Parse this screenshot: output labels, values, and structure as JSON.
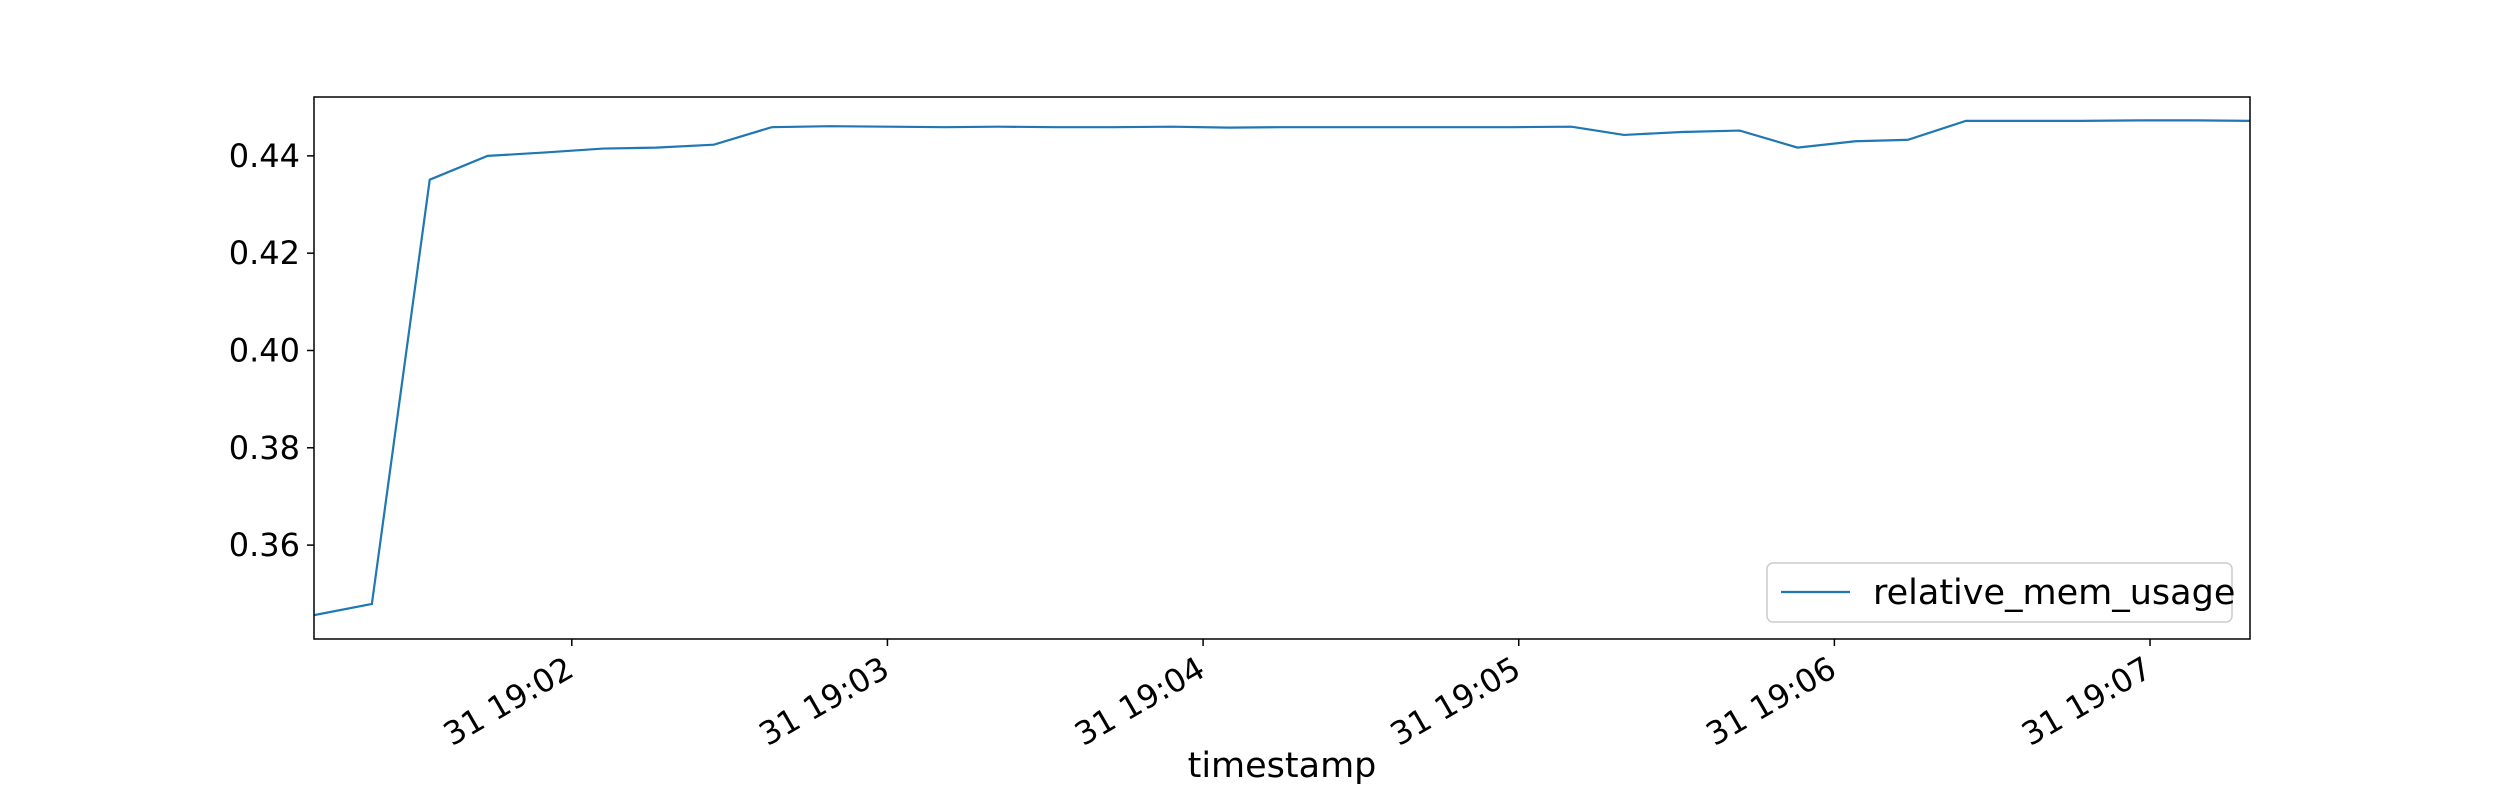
{
  "chart_data": {
    "type": "line",
    "x_label": "timestamp",
    "x": [
      "31 19:01:11",
      "31 19:01:22",
      "31 19:01:33",
      "31 19:01:44",
      "31 19:01:55",
      "31 19:02:06",
      "31 19:02:16",
      "31 19:02:27",
      "31 19:02:38",
      "31 19:02:49",
      "31 19:03:00",
      "31 19:03:11",
      "31 19:03:21",
      "31 19:03:32",
      "31 19:03:43",
      "31 19:03:54",
      "31 19:04:05",
      "31 19:04:15",
      "31 19:04:26",
      "31 19:04:37",
      "31 19:04:48",
      "31 19:04:59",
      "31 19:05:10",
      "31 19:05:20",
      "31 19:05:31",
      "31 19:05:42",
      "31 19:05:53",
      "31 19:06:04",
      "31 19:06:14",
      "31 19:06:25",
      "31 19:06:36",
      "31 19:06:47",
      "31 19:06:58",
      "31 19:07:09",
      "31 19:07:19"
    ],
    "series": [
      {
        "name": "relative_mem_usage",
        "color": "#1f77b4",
        "values": [
          0.3456,
          0.3479,
          0.4351,
          0.44,
          0.4407,
          0.4415,
          0.4417,
          0.4423,
          0.4459,
          0.4461,
          0.446,
          0.4459,
          0.446,
          0.4459,
          0.4459,
          0.446,
          0.4458,
          0.4459,
          0.4459,
          0.4459,
          0.4459,
          0.4459,
          0.446,
          0.4443,
          0.4449,
          0.4452,
          0.4417,
          0.443,
          0.4433,
          0.4472,
          0.4472,
          0.4472,
          0.4473,
          0.4473,
          0.4472
        ]
      }
    ],
    "xlim": [
      "31 19:01:11",
      "31 19:07:19"
    ],
    "xticks": [
      "31 19:02",
      "31 19:03",
      "31 19:04",
      "31 19:05",
      "31 19:06",
      "31 19:07"
    ],
    "ylim": [
      0.3407,
      0.4521
    ],
    "yticks": [
      0.36,
      0.38,
      {
        "value": 0.4,
        "label": "0.40"
      },
      0.42,
      0.44
    ],
    "grid": false,
    "legend": "lower right"
  }
}
